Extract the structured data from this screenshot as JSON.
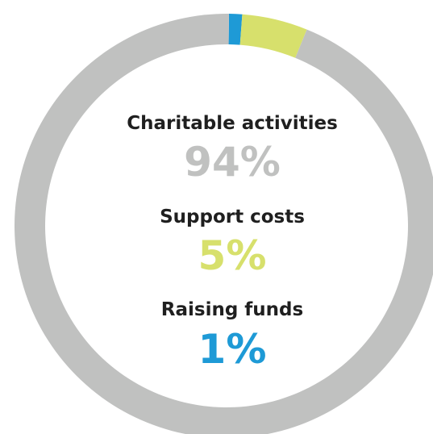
{
  "chart_data": {
    "type": "donut",
    "categories": [
      "Charitable activities",
      "Support costs",
      "Raising funds"
    ],
    "values": [
      94,
      5,
      1
    ],
    "value_labels": [
      "94%",
      "5%",
      "1%"
    ],
    "colors": [
      "#c0c1c0",
      "#d7e06c",
      "#1e9ad6"
    ]
  }
}
